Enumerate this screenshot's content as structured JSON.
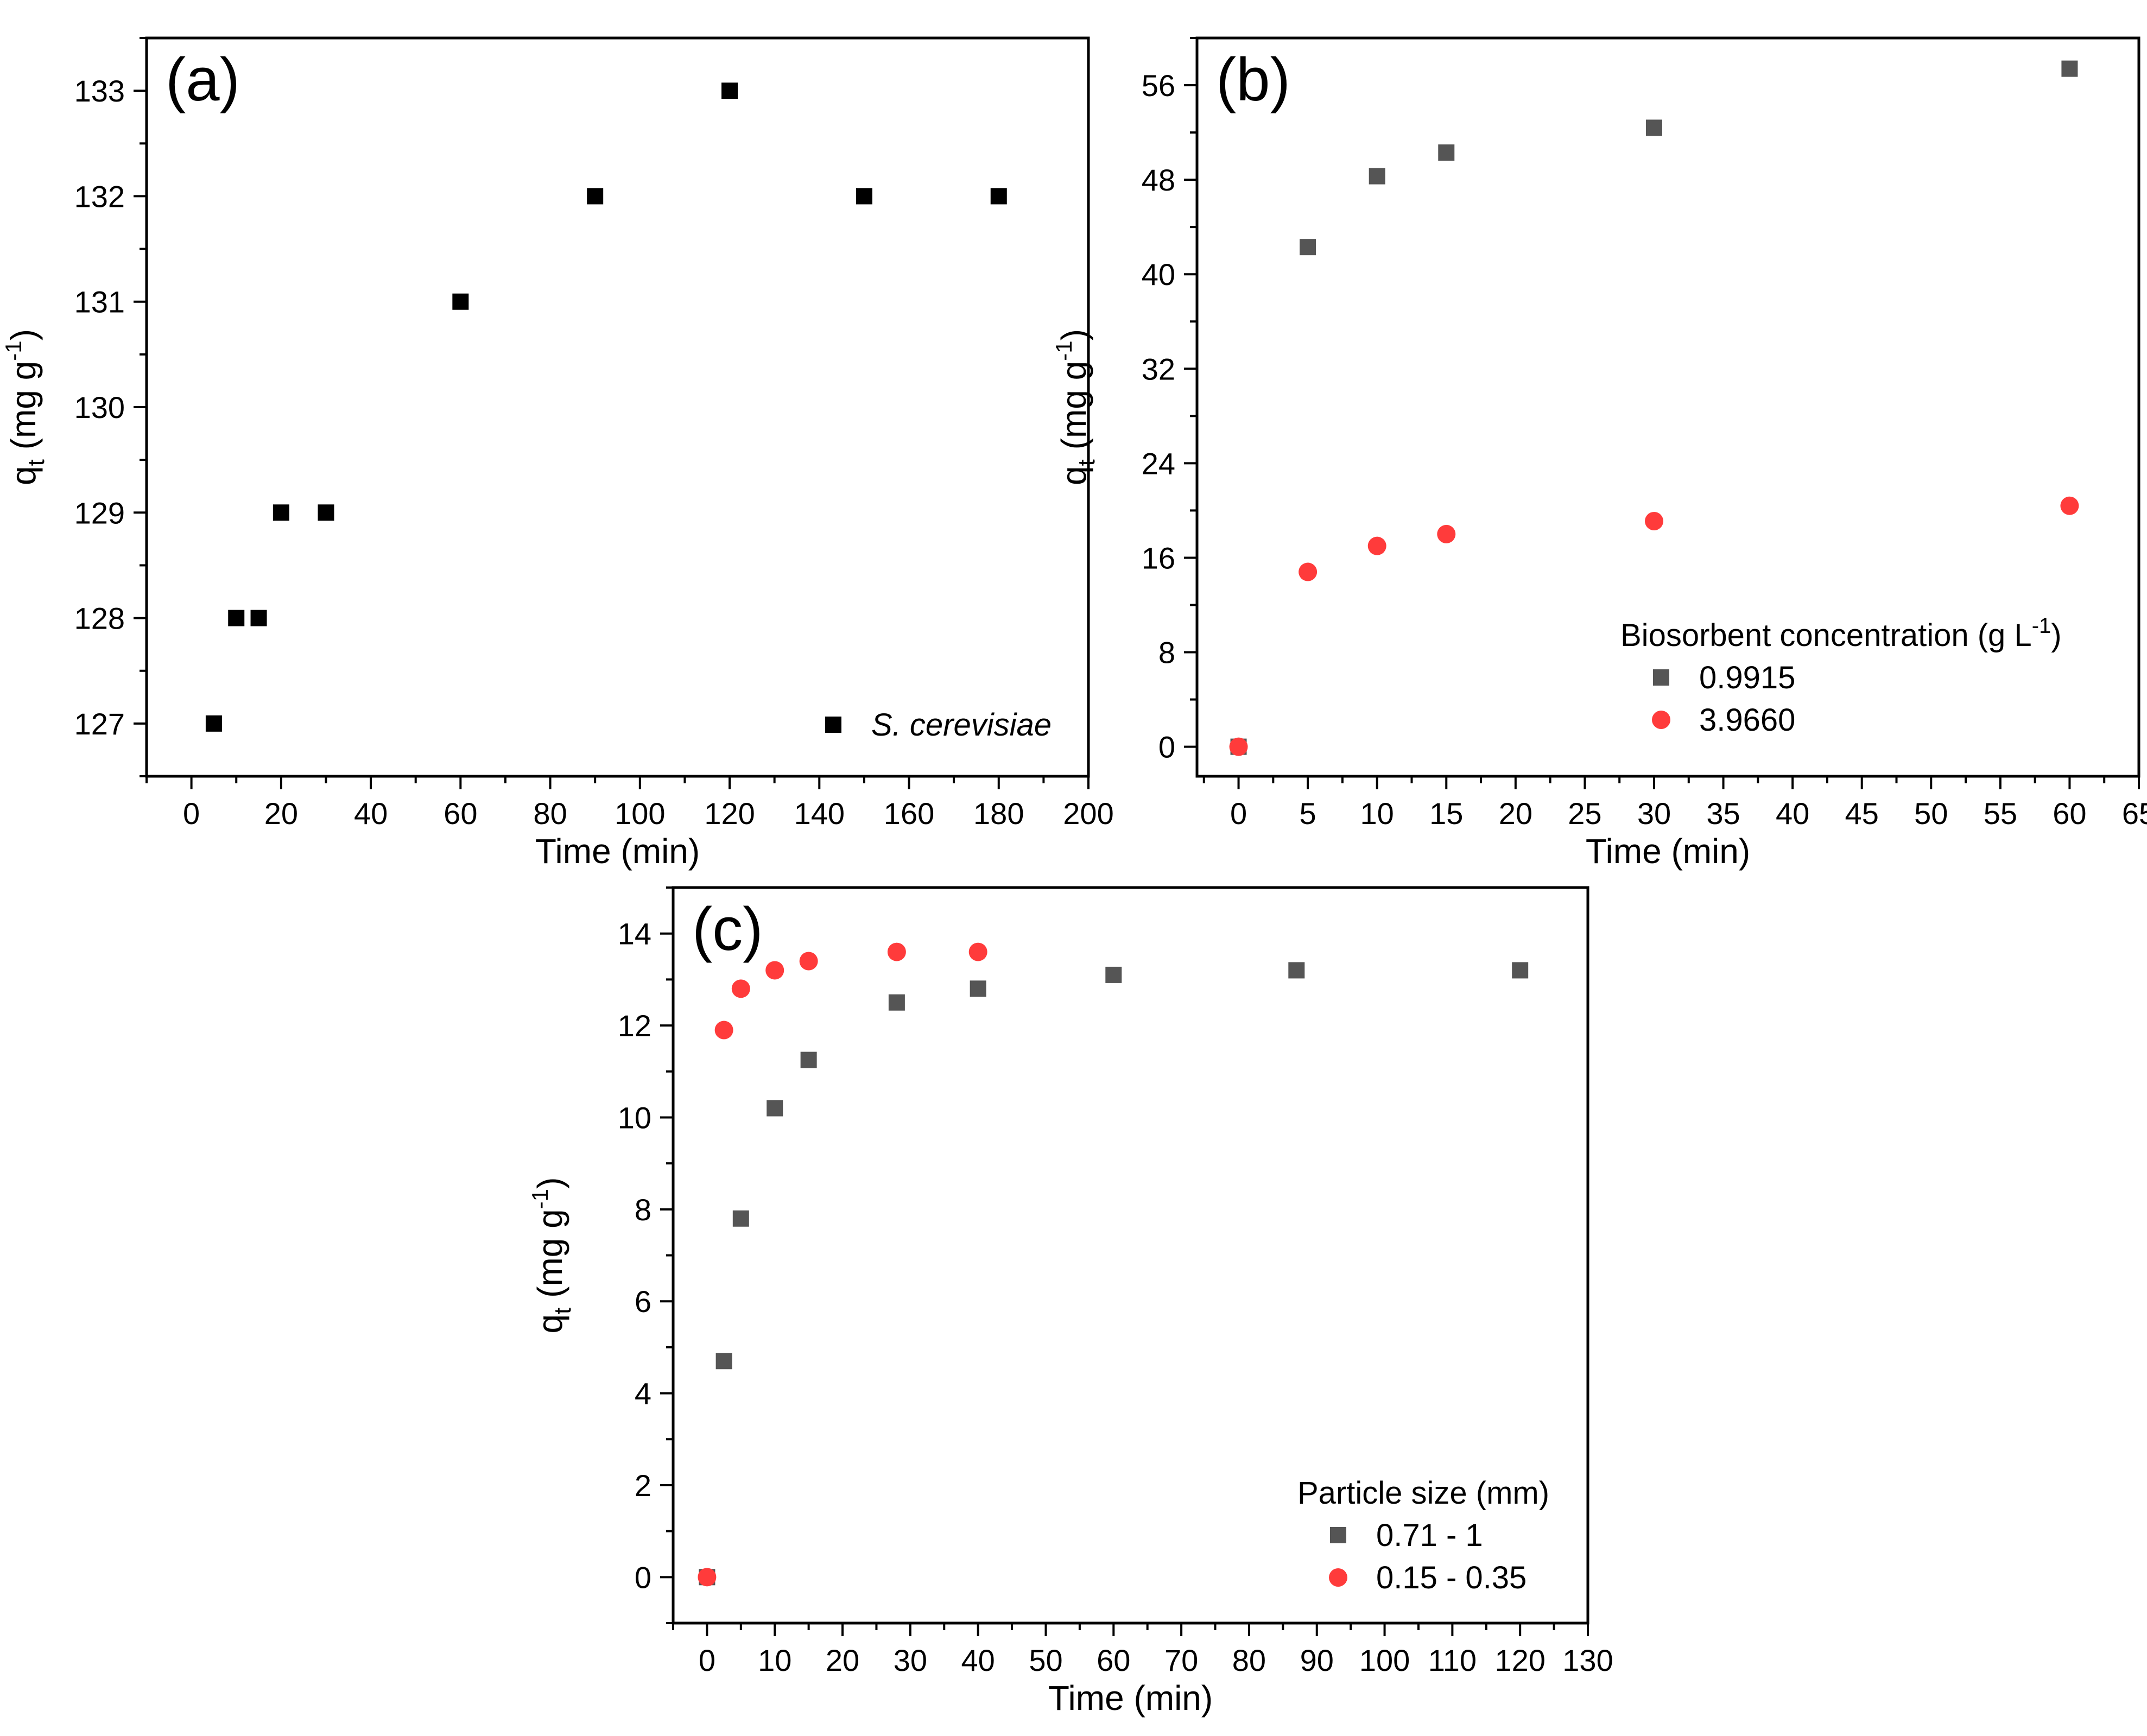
{
  "chart_data": [
    {
      "id": "a",
      "type": "scatter",
      "panel_label": "(a)",
      "xlabel": "Time (min)",
      "ylabel": {
        "main": "q",
        "sub": "t",
        "unit_pre": " (mg g",
        "unit_sup": "-1",
        "unit_post": ")"
      },
      "xlim": [
        -10,
        200
      ],
      "ylim": [
        126.5,
        133.5
      ],
      "xticks": [
        0,
        20,
        40,
        60,
        80,
        100,
        120,
        140,
        160,
        180,
        200
      ],
      "yticks": [
        127,
        128,
        129,
        130,
        131,
        132,
        133
      ],
      "legend": {
        "position": "bottom-right",
        "title": ""
      },
      "series": [
        {
          "name": "S. cerevisiae",
          "marker": "square",
          "color": "#000000",
          "x": [
            5,
            10,
            15,
            20,
            30,
            60,
            90,
            120,
            150,
            180
          ],
          "y": [
            127,
            128,
            128,
            129,
            129,
            131,
            132,
            133,
            132,
            132
          ]
        }
      ]
    },
    {
      "id": "b",
      "type": "scatter",
      "panel_label": "(b)",
      "xlabel": "Time (min)",
      "ylabel": {
        "main": "q",
        "sub": "t",
        "unit_pre": " (mg g",
        "unit_sup": "-1",
        "unit_post": ")"
      },
      "xlim": [
        -3,
        65
      ],
      "ylim": [
        -2.5,
        60
      ],
      "xticks": [
        0,
        5,
        10,
        15,
        20,
        25,
        30,
        35,
        40,
        45,
        50,
        55,
        60,
        65
      ],
      "yticks": [
        0,
        8,
        16,
        24,
        32,
        40,
        48,
        56
      ],
      "legend": {
        "position": "bottom-right",
        "title_pre": "Biosorbent concentration (g L",
        "title_sup": "-1",
        "title_post": ")"
      },
      "series": [
        {
          "name": "0.9915",
          "marker": "square",
          "color": "#555555",
          "x": [
            0,
            5,
            10,
            15,
            30,
            60
          ],
          "y": [
            0,
            42.3,
            48.3,
            50.3,
            52.4,
            57.4
          ]
        },
        {
          "name": "3.9660",
          "marker": "circle",
          "color": "#ff3b3b",
          "x": [
            0,
            5,
            10,
            15,
            30,
            60
          ],
          "y": [
            0,
            14.8,
            17.0,
            18.0,
            19.1,
            20.4
          ]
        }
      ]
    },
    {
      "id": "c",
      "type": "scatter",
      "panel_label": "(c)",
      "xlabel": "Time (min)",
      "ylabel": {
        "main": "q",
        "sub": "t",
        "unit_pre": " (mg g",
        "unit_sup": "-1",
        "unit_post": ")"
      },
      "xlim": [
        -5,
        130
      ],
      "ylim": [
        -1,
        15
      ],
      "xticks": [
        0,
        10,
        20,
        30,
        40,
        50,
        60,
        70,
        80,
        90,
        100,
        110,
        120,
        130
      ],
      "yticks": [
        0,
        2,
        4,
        6,
        8,
        10,
        12,
        14
      ],
      "legend": {
        "position": "bottom-right",
        "title": "Particle size (mm)"
      },
      "series": [
        {
          "name": "0.71 - 1",
          "marker": "square",
          "color": "#555555",
          "x": [
            0,
            2.5,
            5,
            10,
            15,
            28,
            40,
            60,
            87,
            120
          ],
          "y": [
            0,
            4.7,
            7.8,
            10.2,
            11.25,
            12.5,
            12.8,
            13.1,
            13.2,
            13.2
          ]
        },
        {
          "name": "0.15 - 0.35",
          "marker": "circle",
          "color": "#ff3b3b",
          "x": [
            0,
            2.5,
            5,
            10,
            15,
            28,
            40
          ],
          "y": [
            0,
            11.9,
            12.8,
            13.2,
            13.4,
            13.6,
            13.6
          ]
        }
      ]
    }
  ]
}
